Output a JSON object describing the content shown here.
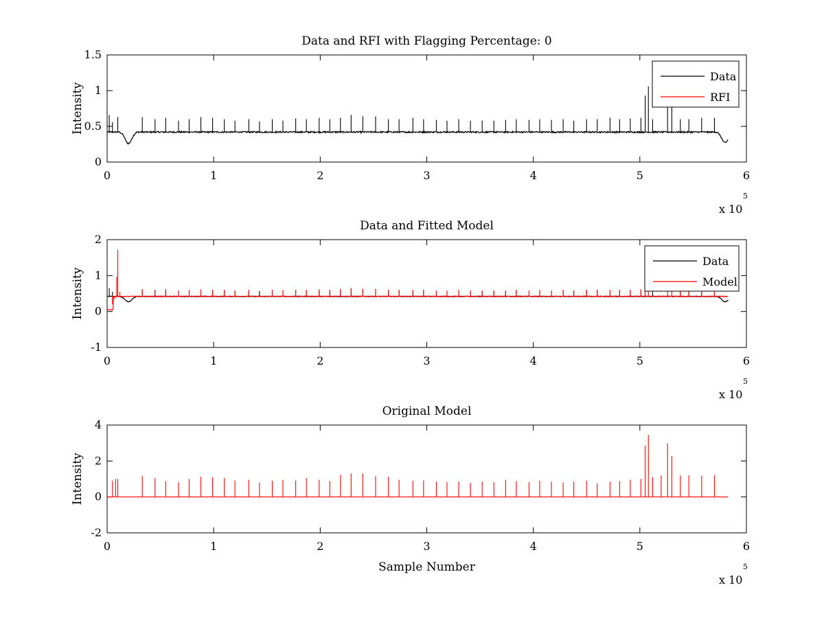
{
  "figure": {
    "background": "#ffffff"
  },
  "chart_data": [
    {
      "type": "line",
      "title": "Data and RFI with Flagging Percentage: 0",
      "xlabel": "",
      "ylabel": "Intensity",
      "xlim": [
        0,
        6
      ],
      "ylim": [
        0,
        1.5
      ],
      "x_multiplier": "x 10",
      "x_multiplier_exponent": "5",
      "xticks": [
        "0",
        "1",
        "2",
        "3",
        "4",
        "5",
        "6"
      ],
      "yticks": [
        "0",
        "0.5",
        "1",
        "1.5"
      ],
      "ytick_values": [
        0,
        0.5,
        1,
        1.5
      ],
      "grid": false,
      "legend": "top-right",
      "series": [
        {
          "name": "Data",
          "color": "#000000",
          "baseline": 0.42,
          "dips": [
            {
              "x": 0.2,
              "min": 0.26
            },
            {
              "x": 5.8,
              "min": 0.27
            }
          ],
          "spikes": [
            [
              0.02,
              0.66
            ],
            [
              0.05,
              0.56
            ],
            [
              0.1,
              0.63
            ],
            [
              0.33,
              0.63
            ],
            [
              0.45,
              0.6
            ],
            [
              0.55,
              0.62
            ],
            [
              0.67,
              0.58
            ],
            [
              0.77,
              0.6
            ],
            [
              0.88,
              0.63
            ],
            [
              0.99,
              0.62
            ],
            [
              1.1,
              0.6
            ],
            [
              1.2,
              0.58
            ],
            [
              1.33,
              0.6
            ],
            [
              1.43,
              0.57
            ],
            [
              1.55,
              0.6
            ],
            [
              1.65,
              0.58
            ],
            [
              1.77,
              0.61
            ],
            [
              1.87,
              0.6
            ],
            [
              1.99,
              0.62
            ],
            [
              2.09,
              0.6
            ],
            [
              2.19,
              0.62
            ],
            [
              2.29,
              0.66
            ],
            [
              2.4,
              0.64
            ],
            [
              2.52,
              0.64
            ],
            [
              2.64,
              0.6
            ],
            [
              2.74,
              0.6
            ],
            [
              2.87,
              0.62
            ],
            [
              2.97,
              0.6
            ],
            [
              3.09,
              0.59
            ],
            [
              3.19,
              0.58
            ],
            [
              3.3,
              0.6
            ],
            [
              3.41,
              0.58
            ],
            [
              3.52,
              0.58
            ],
            [
              3.63,
              0.58
            ],
            [
              3.74,
              0.59
            ],
            [
              3.84,
              0.6
            ],
            [
              3.96,
              0.59
            ],
            [
              4.06,
              0.6
            ],
            [
              4.17,
              0.59
            ],
            [
              4.28,
              0.6
            ],
            [
              4.38,
              0.58
            ],
            [
              4.5,
              0.6
            ],
            [
              4.6,
              0.6
            ],
            [
              4.72,
              0.62
            ],
            [
              4.81,
              0.6
            ],
            [
              4.91,
              0.61
            ],
            [
              5.01,
              0.62
            ],
            [
              5.05,
              0.93
            ],
            [
              5.08,
              1.06
            ],
            [
              5.12,
              0.6
            ],
            [
              5.26,
              0.85
            ],
            [
              5.3,
              0.88
            ],
            [
              5.38,
              0.6
            ],
            [
              5.46,
              0.6
            ],
            [
              5.58,
              0.62
            ],
            [
              5.7,
              0.62
            ]
          ]
        },
        {
          "name": "RFI",
          "color": "#ff0000",
          "baseline": null,
          "spikes": []
        }
      ]
    },
    {
      "type": "line",
      "title": "Data and Fitted Model",
      "xlabel": "",
      "ylabel": "Intensity",
      "xlim": [
        0,
        6
      ],
      "ylim": [
        -1,
        2
      ],
      "x_multiplier": "x 10",
      "x_multiplier_exponent": "5",
      "xticks": [
        "0",
        "1",
        "2",
        "3",
        "4",
        "5",
        "6"
      ],
      "yticks": [
        "-1",
        "0",
        "1",
        "2"
      ],
      "ytick_values": [
        -1,
        0,
        1,
        2
      ],
      "grid": false,
      "legend": "top-right",
      "series": [
        {
          "name": "Data",
          "color": "#000000",
          "baseline": 0.42,
          "dips": [
            {
              "x": 0.2,
              "min": 0.27
            },
            {
              "x": 5.8,
              "min": 0.27
            }
          ],
          "spikes": [
            [
              0.02,
              0.65
            ],
            [
              0.05,
              0.55
            ],
            [
              0.1,
              0.6
            ],
            [
              0.33,
              0.6
            ],
            [
              0.45,
              0.6
            ],
            [
              0.55,
              0.6
            ],
            [
              0.67,
              0.58
            ],
            [
              0.77,
              0.6
            ],
            [
              0.88,
              0.6
            ],
            [
              0.99,
              0.6
            ],
            [
              1.1,
              0.6
            ],
            [
              1.2,
              0.58
            ],
            [
              1.33,
              0.6
            ],
            [
              1.43,
              0.57
            ],
            [
              1.55,
              0.6
            ],
            [
              1.65,
              0.58
            ],
            [
              1.77,
              0.6
            ],
            [
              1.87,
              0.6
            ],
            [
              1.99,
              0.6
            ],
            [
              2.09,
              0.6
            ],
            [
              2.19,
              0.6
            ],
            [
              2.29,
              0.65
            ],
            [
              2.4,
              0.62
            ],
            [
              2.52,
              0.62
            ],
            [
              2.64,
              0.6
            ],
            [
              2.74,
              0.6
            ],
            [
              2.87,
              0.6
            ],
            [
              2.97,
              0.6
            ],
            [
              3.09,
              0.58
            ],
            [
              3.19,
              0.58
            ],
            [
              3.3,
              0.6
            ],
            [
              3.41,
              0.58
            ],
            [
              3.52,
              0.58
            ],
            [
              3.63,
              0.58
            ],
            [
              3.74,
              0.58
            ],
            [
              3.84,
              0.6
            ],
            [
              3.96,
              0.58
            ],
            [
              4.06,
              0.6
            ],
            [
              4.17,
              0.58
            ],
            [
              4.28,
              0.6
            ],
            [
              4.38,
              0.58
            ],
            [
              4.5,
              0.6
            ],
            [
              4.6,
              0.6
            ],
            [
              4.72,
              0.6
            ],
            [
              4.81,
              0.6
            ],
            [
              4.91,
              0.6
            ],
            [
              5.01,
              0.6
            ],
            [
              5.12,
              0.6
            ],
            [
              5.38,
              0.6
            ],
            [
              5.46,
              0.6
            ],
            [
              5.58,
              0.6
            ],
            [
              5.7,
              0.6
            ]
          ]
        },
        {
          "name": "Model",
          "color": "#ff0000",
          "baseline": 0.42,
          "lead_in": {
            "x_start": 0,
            "x_end": 0.06,
            "value": 0.05
          },
          "spikes": [
            [
              0.05,
              0.2
            ],
            [
              0.07,
              0.35
            ],
            [
              0.09,
              0.97
            ],
            [
              0.1,
              1.72
            ],
            [
              0.12,
              0.55
            ],
            [
              0.33,
              0.62
            ],
            [
              0.45,
              0.6
            ],
            [
              0.55,
              0.62
            ],
            [
              0.67,
              0.58
            ],
            [
              0.77,
              0.6
            ],
            [
              0.88,
              0.62
            ],
            [
              0.99,
              0.6
            ],
            [
              1.1,
              0.6
            ],
            [
              1.2,
              0.58
            ],
            [
              1.33,
              0.6
            ],
            [
              1.55,
              0.6
            ],
            [
              1.65,
              0.6
            ],
            [
              1.77,
              0.6
            ],
            [
              1.87,
              0.6
            ],
            [
              1.99,
              0.62
            ],
            [
              2.09,
              0.6
            ],
            [
              2.19,
              0.62
            ],
            [
              2.29,
              0.65
            ],
            [
              2.4,
              0.63
            ],
            [
              2.52,
              0.63
            ],
            [
              2.64,
              0.6
            ],
            [
              2.74,
              0.6
            ],
            [
              2.87,
              0.6
            ],
            [
              2.97,
              0.6
            ],
            [
              3.09,
              0.58
            ],
            [
              3.19,
              0.58
            ],
            [
              3.3,
              0.6
            ],
            [
              3.41,
              0.58
            ],
            [
              3.52,
              0.58
            ],
            [
              3.63,
              0.58
            ],
            [
              3.74,
              0.58
            ],
            [
              3.84,
              0.6
            ],
            [
              3.96,
              0.58
            ],
            [
              4.06,
              0.6
            ],
            [
              4.17,
              0.58
            ],
            [
              4.28,
              0.6
            ],
            [
              4.38,
              0.58
            ],
            [
              4.5,
              0.6
            ],
            [
              4.6,
              0.6
            ],
            [
              4.72,
              0.6
            ],
            [
              4.81,
              0.6
            ],
            [
              4.91,
              0.6
            ],
            [
              5.01,
              0.62
            ],
            [
              5.05,
              0.92
            ],
            [
              5.08,
              0.88
            ],
            [
              5.26,
              0.8
            ],
            [
              5.3,
              0.78
            ],
            [
              5.38,
              0.6
            ],
            [
              5.46,
              0.6
            ],
            [
              5.58,
              0.6
            ],
            [
              5.7,
              0.6
            ]
          ]
        }
      ]
    },
    {
      "type": "line",
      "title": "Original Model",
      "xlabel": "Sample Number",
      "ylabel": "Intensity",
      "xlim": [
        0,
        6
      ],
      "ylim": [
        -2,
        4
      ],
      "x_multiplier": "x 10",
      "x_multiplier_exponent": "5",
      "xticks": [
        "0",
        "1",
        "2",
        "3",
        "4",
        "5",
        "6"
      ],
      "yticks": [
        "-2",
        "0",
        "2",
        "4"
      ],
      "ytick_values": [
        -2,
        0,
        2,
        4
      ],
      "grid": false,
      "legend": null,
      "series": [
        {
          "name": "",
          "color": "#ff0000",
          "baseline": 0,
          "x_end": 5.83,
          "spikes": [
            [
              0.05,
              0.9
            ],
            [
              0.08,
              1.0
            ],
            [
              0.1,
              1.0
            ],
            [
              0.33,
              1.15
            ],
            [
              0.45,
              1.05
            ],
            [
              0.55,
              0.88
            ],
            [
              0.67,
              0.82
            ],
            [
              0.77,
              1.0
            ],
            [
              0.88,
              1.12
            ],
            [
              0.99,
              1.1
            ],
            [
              1.1,
              1.05
            ],
            [
              1.2,
              0.92
            ],
            [
              1.33,
              0.95
            ],
            [
              1.43,
              0.8
            ],
            [
              1.55,
              0.9
            ],
            [
              1.65,
              0.95
            ],
            [
              1.77,
              0.92
            ],
            [
              1.87,
              1.05
            ],
            [
              1.99,
              0.95
            ],
            [
              2.09,
              0.88
            ],
            [
              2.19,
              1.22
            ],
            [
              2.29,
              1.3
            ],
            [
              2.4,
              1.3
            ],
            [
              2.52,
              1.15
            ],
            [
              2.64,
              1.12
            ],
            [
              2.74,
              0.95
            ],
            [
              2.87,
              0.9
            ],
            [
              2.97,
              0.92
            ],
            [
              3.09,
              0.85
            ],
            [
              3.19,
              0.82
            ],
            [
              3.3,
              0.85
            ],
            [
              3.41,
              0.78
            ],
            [
              3.52,
              0.85
            ],
            [
              3.63,
              0.82
            ],
            [
              3.74,
              0.95
            ],
            [
              3.84,
              0.88
            ],
            [
              3.96,
              0.82
            ],
            [
              4.06,
              0.9
            ],
            [
              4.17,
              0.85
            ],
            [
              4.28,
              0.8
            ],
            [
              4.38,
              0.85
            ],
            [
              4.5,
              0.9
            ],
            [
              4.6,
              0.75
            ],
            [
              4.72,
              0.85
            ],
            [
              4.81,
              0.88
            ],
            [
              4.91,
              0.95
            ],
            [
              5.01,
              1.0
            ],
            [
              5.05,
              2.85
            ],
            [
              5.08,
              3.45
            ],
            [
              5.12,
              1.1
            ],
            [
              5.2,
              1.2
            ],
            [
              5.26,
              2.98
            ],
            [
              5.3,
              2.28
            ],
            [
              5.38,
              1.2
            ],
            [
              5.46,
              1.2
            ],
            [
              5.58,
              1.18
            ],
            [
              5.7,
              1.2
            ]
          ]
        }
      ]
    }
  ]
}
